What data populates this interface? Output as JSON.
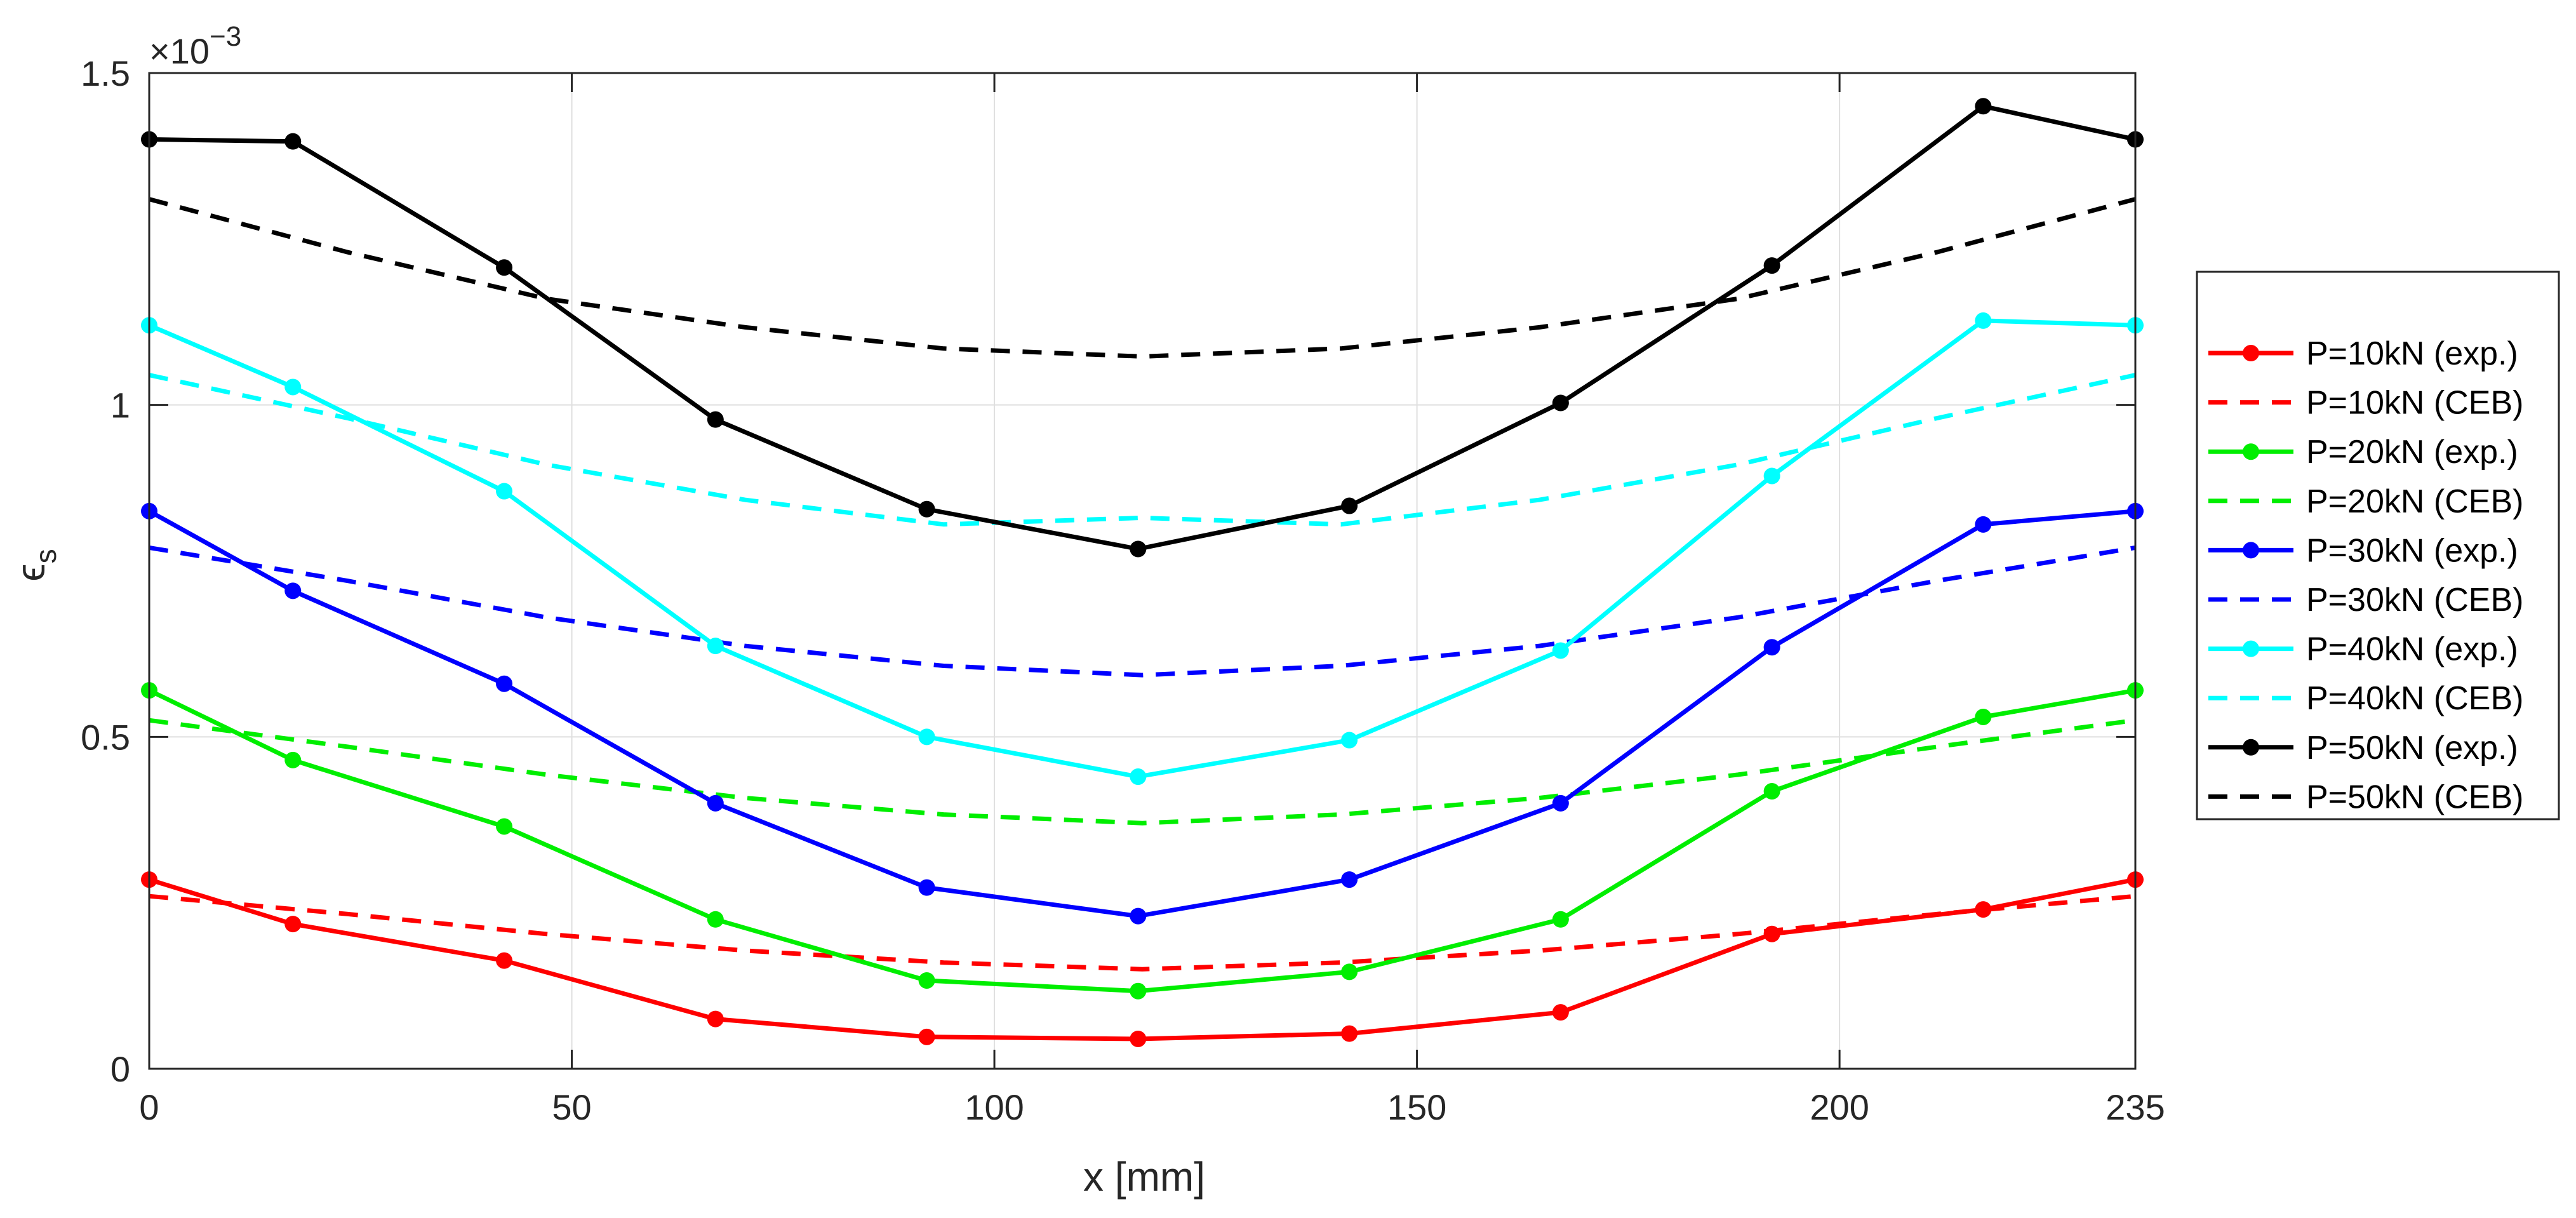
{
  "chart_data": {
    "type": "line",
    "title": "",
    "xlabel": "x [mm]",
    "ylabel": "ϵ",
    "ylabel_subscript": "s",
    "exponent_label": "×10",
    "exponent_power": "−3",
    "xlim": [
      0,
      235
    ],
    "ylim": [
      0,
      1.5
    ],
    "xticks": [
      0,
      50,
      100,
      150,
      200,
      235
    ],
    "xtick_labels": [
      "0",
      "50",
      "100",
      "150",
      "200",
      "235"
    ],
    "yticks": [
      0,
      0.5,
      1,
      1.5
    ],
    "ytick_labels": [
      "0",
      "0.5",
      "1",
      "1.5"
    ],
    "grid": true,
    "legend_position": "right-outside",
    "x_exp": [
      0,
      17,
      42,
      67,
      92,
      117,
      142,
      167,
      192,
      217,
      235
    ],
    "x_ceb": [
      0,
      23.5,
      47,
      70.5,
      94,
      117.5,
      141,
      164.5,
      188,
      211.5,
      235
    ],
    "series": [
      {
        "name": "P=10kN (exp.)",
        "color": "#ff0000",
        "style": "solid",
        "markers": true,
        "data_x": "x_exp",
        "values": [
          0.285,
          0.218,
          0.163,
          0.075,
          0.048,
          0.045,
          0.053,
          0.085,
          0.203,
          0.24,
          0.285
        ]
      },
      {
        "name": "P=10kN (CEB)",
        "color": "#ff0000",
        "style": "dashed",
        "markers": false,
        "data_x": "x_ceb",
        "values": [
          0.26,
          0.233,
          0.203,
          0.178,
          0.16,
          0.15,
          0.16,
          0.178,
          0.203,
          0.233,
          0.26
        ]
      },
      {
        "name": "P=20kN (exp.)",
        "color": "#00ee00",
        "style": "solid",
        "markers": true,
        "data_x": "x_exp",
        "values": [
          0.57,
          0.465,
          0.365,
          0.225,
          0.133,
          0.117,
          0.146,
          0.225,
          0.418,
          0.53,
          0.57
        ]
      },
      {
        "name": "P=20kN (CEB)",
        "color": "#00ee00",
        "style": "dashed",
        "markers": false,
        "data_x": "x_ceb",
        "values": [
          0.525,
          0.485,
          0.443,
          0.408,
          0.383,
          0.37,
          0.383,
          0.408,
          0.443,
          0.485,
          0.525
        ]
      },
      {
        "name": "P=30kN (exp.)",
        "color": "#0000ff",
        "style": "solid",
        "markers": true,
        "data_x": "x_exp",
        "values": [
          0.84,
          0.72,
          0.58,
          0.4,
          0.273,
          0.23,
          0.285,
          0.4,
          0.635,
          0.82,
          0.84
        ]
      },
      {
        "name": "P=30kN (CEB)",
        "color": "#0000ff",
        "style": "dashed",
        "markers": false,
        "data_x": "x_ceb",
        "values": [
          0.785,
          0.735,
          0.68,
          0.637,
          0.607,
          0.593,
          0.607,
          0.637,
          0.68,
          0.735,
          0.785
        ]
      },
      {
        "name": "P=40kN (exp.)",
        "color": "#00ffff",
        "style": "solid",
        "markers": true,
        "data_x": "x_exp",
        "values": [
          1.12,
          1.027,
          0.87,
          0.637,
          0.5,
          0.44,
          0.495,
          0.63,
          0.893,
          1.127,
          1.12
        ]
      },
      {
        "name": "P=40kN (CEB)",
        "color": "#00ffff",
        "style": "dashed",
        "markers": false,
        "data_x": "x_ceb",
        "values": [
          1.045,
          0.98,
          0.91,
          0.857,
          0.82,
          0.83,
          0.82,
          0.857,
          0.91,
          0.98,
          1.045
        ]
      },
      {
        "name": "P=50kN (exp.)",
        "color": "#000000",
        "style": "solid",
        "markers": true,
        "data_x": "x_exp",
        "values": [
          1.4,
          1.397,
          1.207,
          0.978,
          0.843,
          0.783,
          0.848,
          1.003,
          1.21,
          1.45,
          1.4
        ]
      },
      {
        "name": "P=50kN (CEB)",
        "color": "#000000",
        "style": "dashed",
        "markers": false,
        "data_x": "x_ceb",
        "values": [
          1.31,
          1.23,
          1.16,
          1.117,
          1.085,
          1.073,
          1.085,
          1.117,
          1.16,
          1.23,
          1.31
        ]
      }
    ]
  }
}
